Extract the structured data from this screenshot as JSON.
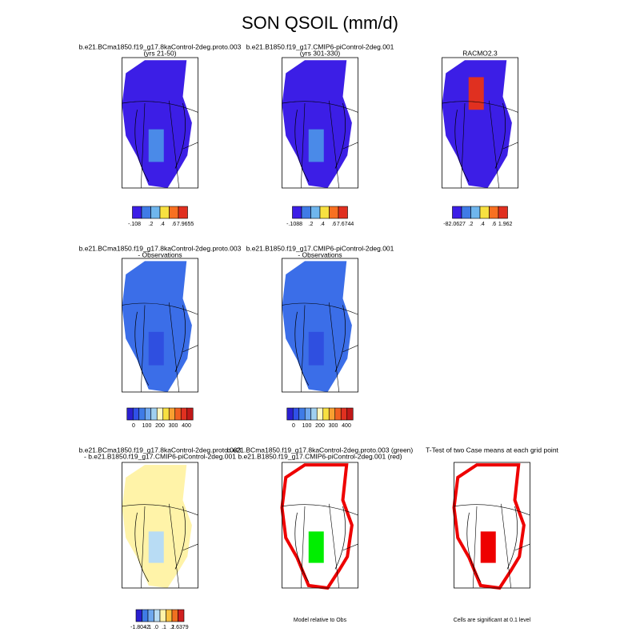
{
  "title": "SON QSOIL (mm/d)",
  "panels": [
    {
      "title_lines": [
        "b.e21.BCma1850.f19_g17.8kaControl-2deg.proto.003",
        "(yrs 21-50)"
      ],
      "colorbar_labels": [
        "-.108",
        ".2",
        ".4",
        ".6",
        "7.9655"
      ]
    },
    {
      "title_lines": [
        "b.e21.B1850.f19_g17.CMIP6-piControl-2deg.001",
        "(yrs 301-330)"
      ],
      "colorbar_labels": [
        "-.1088",
        ".2",
        ".4",
        ".6",
        "7.6744"
      ]
    },
    {
      "title_lines": [
        "RACMO2.3"
      ],
      "colorbar_labels": [
        "-82.0627",
        ".2",
        ".4",
        ".6",
        "1.962"
      ]
    },
    {
      "title_lines": [
        "b.e21.BCma1850.f19_g17.8kaControl-2deg.proto.003",
        "- Observations"
      ],
      "colorbar_labels": [
        "0",
        "100",
        "200",
        "300",
        "400"
      ]
    },
    {
      "title_lines": [
        "b.e21.B1850.f19_g17.CMIP6-piControl-2deg.001",
        "- Observations"
      ],
      "colorbar_labels": [
        "0",
        "100",
        "200",
        "300",
        "400"
      ]
    },
    {
      "title_lines": [
        "b.e21.BCma1850.f19_g17.8kaControl-2deg.proto.003",
        "- b.e21.B1850.f19_g17.CMIP6-piControl-2deg.001"
      ],
      "colorbar_labels": [
        "-1.8042",
        "-.1",
        ".0",
        ".1",
        ".2",
        "1.6379"
      ]
    },
    {
      "title_lines": [
        "b.e21.BCma1850.f19_g17.8kaControl-2deg.proto.003 (green)",
        "b.e21.B1850.f19_g17.CMIP6-piControl-2deg.001 (red)"
      ],
      "note": "Model relative to Obs"
    },
    {
      "title_lines": [
        "T-Test of two Case means at each grid point"
      ],
      "note": "Cells are significant at 0.1 level"
    }
  ]
}
